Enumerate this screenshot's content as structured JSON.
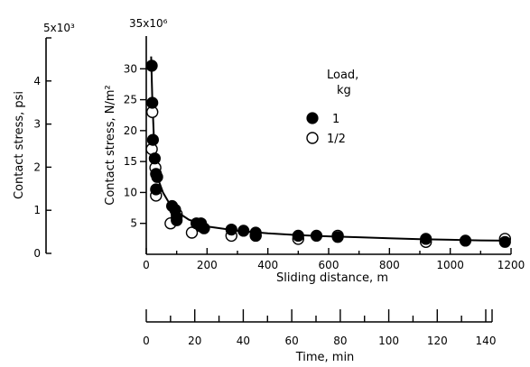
{
  "chart_data": {
    "type": "scatter",
    "x_axis": {
      "label": "Sliding distance, m",
      "range": [
        0,
        1200
      ],
      "ticks": [
        0,
        200,
        400,
        600,
        800,
        1000,
        1200
      ],
      "tick_labels": [
        "0",
        "200",
        "400",
        "600",
        "800",
        "1000",
        "1200"
      ]
    },
    "y_axis_primary": {
      "label": "Contact stress, N/m²",
      "exponent_label": "35x10⁶",
      "range": [
        0,
        35
      ],
      "ticks": [
        5,
        10,
        15,
        20,
        25,
        30
      ],
      "tick_labels": [
        "5",
        "10",
        "15",
        "20",
        "25",
        "30"
      ]
    },
    "y_axis_secondary": {
      "label": "Contact stress, psi",
      "exponent_label": "5x10³",
      "range": [
        0,
        5
      ],
      "ticks": [
        0,
        1,
        2,
        3,
        4
      ],
      "tick_labels": [
        "0",
        "1",
        "2",
        "3",
        "4"
      ]
    },
    "time_axis": {
      "label": "Time, min",
      "range": [
        0,
        145
      ],
      "ticks": [
        0,
        20,
        40,
        60,
        80,
        100,
        120,
        140
      ],
      "tick_labels": [
        "0",
        "20",
        "40",
        "60",
        "80",
        "100",
        "120",
        "140"
      ]
    },
    "legend": {
      "title_line1": "Load,",
      "title_line2": "kg",
      "placement": "upper-right",
      "entries": [
        "1",
        "1/2"
      ]
    },
    "series": [
      {
        "name": "1",
        "marker": "filled-circle",
        "points": [
          [
            18,
            30.5
          ],
          [
            20,
            24.5
          ],
          [
            22,
            18.5
          ],
          [
            28,
            15.5
          ],
          [
            32,
            13.0
          ],
          [
            36,
            12.5
          ],
          [
            32,
            10.5
          ],
          [
            85,
            7.8
          ],
          [
            95,
            7.2
          ],
          [
            100,
            6.0
          ],
          [
            100,
            5.5
          ],
          [
            165,
            5.0
          ],
          [
            180,
            5.0
          ],
          [
            180,
            4.5
          ],
          [
            190,
            4.2
          ],
          [
            280,
            4.0
          ],
          [
            320,
            3.8
          ],
          [
            360,
            3.5
          ],
          [
            360,
            3.0
          ],
          [
            500,
            3.0
          ],
          [
            560,
            3.0
          ],
          [
            630,
            2.8
          ],
          [
            920,
            2.5
          ],
          [
            1050,
            2.2
          ],
          [
            1180,
            2.0
          ]
        ]
      },
      {
        "name": "1/2",
        "marker": "open-circle",
        "points": [
          [
            20,
            23.0
          ],
          [
            18,
            17.0
          ],
          [
            30,
            14.0
          ],
          [
            32,
            9.5
          ],
          [
            80,
            5.0
          ],
          [
            100,
            6.5
          ],
          [
            150,
            3.5
          ],
          [
            280,
            3.0
          ],
          [
            360,
            3.0
          ],
          [
            500,
            2.5
          ],
          [
            630,
            3.0
          ],
          [
            920,
            2.0
          ],
          [
            1180,
            2.5
          ]
        ]
      }
    ],
    "fit_curve": [
      [
        16,
        32.0
      ],
      [
        20,
        25.0
      ],
      [
        25,
        19.0
      ],
      [
        32,
        14.5
      ],
      [
        40,
        12.0
      ],
      [
        55,
        10.0
      ],
      [
        75,
        8.3
      ],
      [
        100,
        6.9
      ],
      [
        140,
        5.6
      ],
      [
        200,
        4.5
      ],
      [
        300,
        3.8
      ],
      [
        400,
        3.4
      ],
      [
        500,
        3.1
      ],
      [
        600,
        2.9
      ],
      [
        700,
        2.75
      ],
      [
        800,
        2.6
      ],
      [
        900,
        2.45
      ],
      [
        1000,
        2.35
      ],
      [
        1100,
        2.25
      ],
      [
        1190,
        2.2
      ]
    ]
  }
}
